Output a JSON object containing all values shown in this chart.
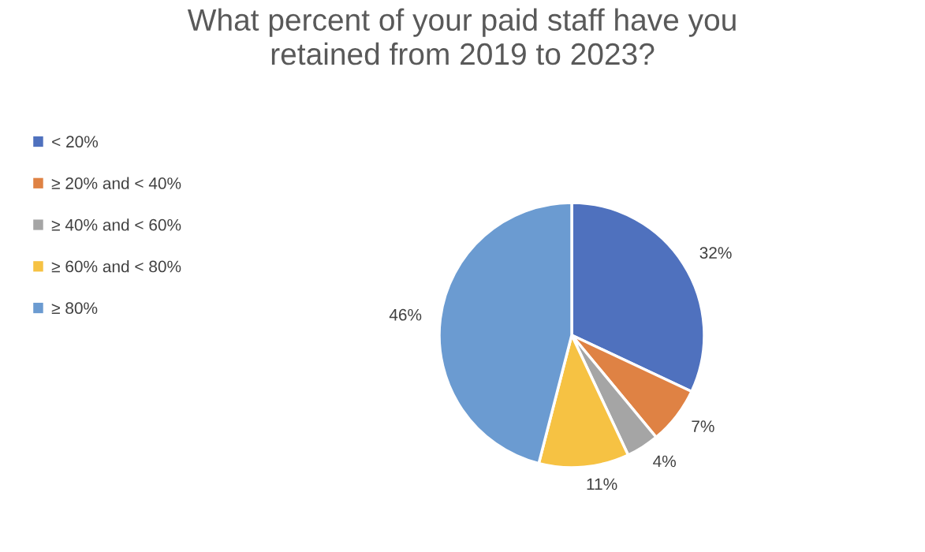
{
  "chart_data": {
    "type": "pie",
    "title": "What percent of your paid staff have you\nretained from 2019 to 2023?",
    "categories": [
      "< 20%",
      "≥ 20% and < 40%",
      "≥ 40% and < 60%",
      "≥ 60% and < 80%",
      "≥ 80%"
    ],
    "values": [
      32,
      7,
      4,
      11,
      46
    ],
    "colors": [
      "#4f71be",
      "#df8244",
      "#a5a5a5",
      "#f6c243",
      "#6b9bd1"
    ],
    "value_labels": [
      "32%",
      "7%",
      "4%",
      "11%",
      "46%"
    ],
    "legend": "left"
  }
}
